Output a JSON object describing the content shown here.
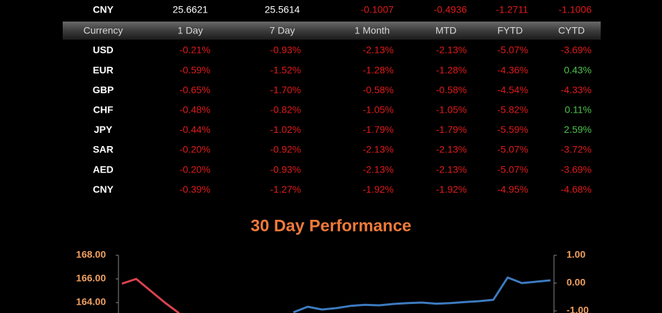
{
  "rate_row": {
    "currency": "CNY",
    "values": [
      "25.6621",
      "25.5614",
      "-0.1007",
      "-0.4936",
      "-1.2711",
      "-1.1006"
    ]
  },
  "table": {
    "header": [
      "Currency",
      "1 Day",
      "7 Day",
      "1 Month",
      "MTD",
      "FYTD",
      "CYTD"
    ],
    "rows": [
      {
        "currency": "USD",
        "values": [
          "-0.21%",
          "-0.93%",
          "-2.13%",
          "-2.13%",
          "-5.07%",
          "-3.69%"
        ]
      },
      {
        "currency": "EUR",
        "values": [
          "-0.59%",
          "-1.52%",
          "-1.28%",
          "-1.28%",
          "-4.36%",
          "0.43%"
        ]
      },
      {
        "currency": "GBP",
        "values": [
          "-0.65%",
          "-1.70%",
          "-0.58%",
          "-0.58%",
          "-4.54%",
          "-4.33%"
        ]
      },
      {
        "currency": "CHF",
        "values": [
          "-0.48%",
          "-0.82%",
          "-1.05%",
          "-1.05%",
          "-5.82%",
          "0.11%"
        ]
      },
      {
        "currency": "JPY",
        "values": [
          "-0.44%",
          "-1.02%",
          "-1.79%",
          "-1.79%",
          "-5.59%",
          "2.59%"
        ]
      },
      {
        "currency": "SAR",
        "values": [
          "-0.20%",
          "-0.92%",
          "-2.13%",
          "-2.13%",
          "-5.07%",
          "-3.72%"
        ]
      },
      {
        "currency": "AED",
        "values": [
          "-0.20%",
          "-0.93%",
          "-2.13%",
          "-2.13%",
          "-5.07%",
          "-3.69%"
        ]
      },
      {
        "currency": "CNY",
        "values": [
          "-0.39%",
          "-1.27%",
          "-1.92%",
          "-1.92%",
          "-4.95%",
          "-4.68%"
        ]
      }
    ]
  },
  "chart_data": {
    "type": "line",
    "title": "30 Day Performance",
    "categories": [
      null,
      null,
      null,
      null,
      null,
      null,
      null,
      null,
      null,
      null,
      null,
      null,
      null,
      null,
      null,
      null,
      null,
      null,
      null,
      null,
      null,
      null,
      null,
      null,
      null,
      null,
      null,
      null,
      null,
      null,
      null
    ],
    "series": [
      {
        "color": "#d9434f",
        "axis": "y",
        "values": [
          165.6,
          166.0,
          165.0,
          164.0,
          163.1,
          null,
          null,
          null,
          null,
          null,
          null,
          null,
          null,
          null,
          null,
          null,
          null,
          null,
          null,
          null,
          null,
          null,
          null,
          null,
          null,
          null,
          null,
          null,
          null,
          null,
          null
        ]
      },
      {
        "color": "#3d7bbf",
        "axis": "y2",
        "values": [
          null,
          null,
          null,
          null,
          null,
          null,
          null,
          null,
          null,
          null,
          null,
          null,
          -1.05,
          -0.85,
          -0.95,
          -0.9,
          -0.82,
          -0.78,
          -0.8,
          -0.75,
          -0.72,
          -0.7,
          -0.74,
          -0.72,
          -0.68,
          -0.65,
          -0.6,
          0.2,
          0.0,
          0.05,
          0.1
        ]
      }
    ],
    "ylim": [
      160,
      168
    ],
    "yticks": [
      {
        "value": 168,
        "label": "168.00"
      },
      {
        "value": 166,
        "label": "166.00"
      },
      {
        "value": 164,
        "label": "164.00"
      }
    ],
    "y2lim": [
      -2.4,
      1
    ],
    "y2ticks": [
      {
        "value": 1,
        "label": "1.00"
      },
      {
        "value": 0,
        "label": "0.00"
      },
      {
        "value": -1,
        "label": "-1.00"
      }
    ]
  }
}
